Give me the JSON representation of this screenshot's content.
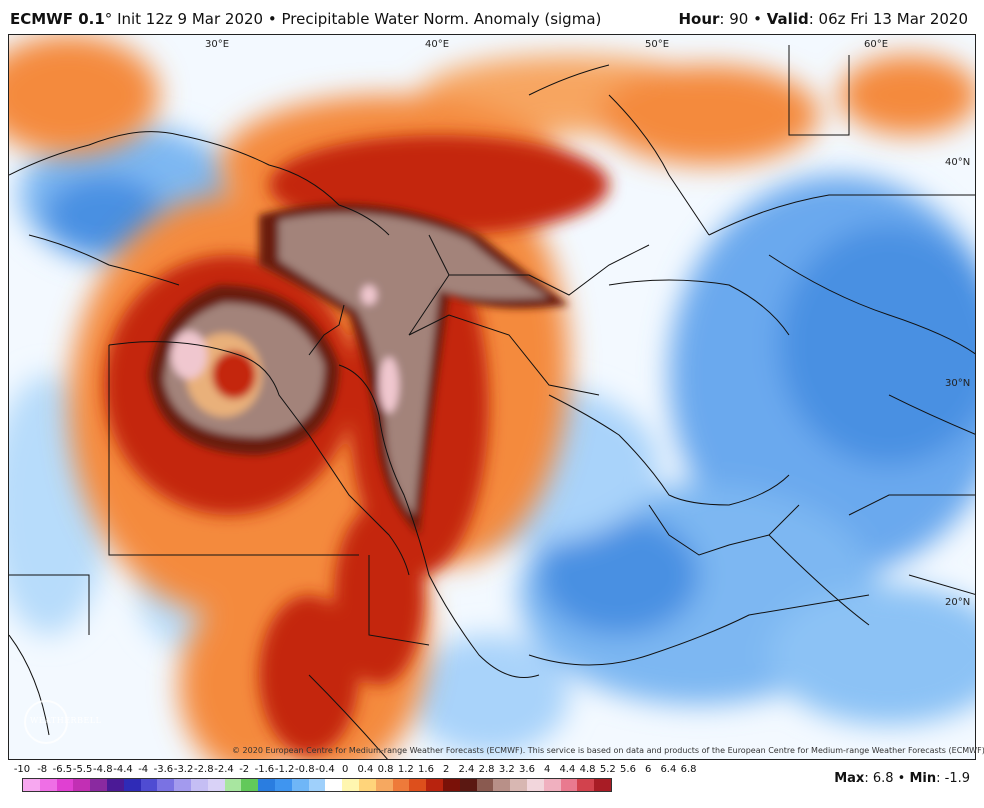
{
  "header": {
    "model": "ECMWF 0.1",
    "degree": "°",
    "init": "Init 12z 9 Mar 2020",
    "bullet": "•",
    "product": "Precipitable Water Norm. Anomaly (sigma)",
    "hour_label": "Hour",
    "hour_value": ": 90",
    "valid_label": "Valid",
    "valid_value": ": 06z Fri 13 Mar 2020"
  },
  "map": {
    "longitude_labels": [
      "30°E",
      "40°E",
      "50°E",
      "60°E"
    ],
    "latitude_labels": [
      "40°N",
      "30°N",
      "20°N"
    ],
    "copyright": "© 2020 European Centre for Medium-range Weather Forecasts (ECMWF). This service is based on data and products of the European Centre for Medium-range Weather Forecasts (ECMWF).",
    "logo_text": "WEATHERBELL",
    "colors": {
      "background_light": "#f6fbff",
      "anomaly_orange": "#f48a3c",
      "anomaly_red": "#c4270e",
      "anomaly_dark": "#6b1b10",
      "anomaly_mauve": "#a3837a",
      "anomaly_pink": "#f0c7cf",
      "moist_blue": "#4a90e2",
      "moist_lightblue": "#b7dcfb"
    }
  },
  "colorbar": {
    "ticks": [
      "-10",
      "-8",
      "-6.5",
      "-5.5",
      "-4.8",
      "-4.4",
      "-4",
      "-3.6",
      "-3.2",
      "-2.8",
      "-2.4",
      "-2",
      "-1.6",
      "-1.2",
      "-0.8",
      "-0.4",
      "0",
      "0.4",
      "0.8",
      "1.2",
      "1.6",
      "2",
      "2.4",
      "2.8",
      "3.2",
      "3.6",
      "4",
      "4.4",
      "4.8",
      "5.2",
      "5.6",
      "6",
      "6.4",
      "6.8"
    ],
    "colors": [
      "#f7a8f0",
      "#ef6fe6",
      "#e040d2",
      "#c22fb4",
      "#8a2aa0",
      "#4b1a96",
      "#2f2bb7",
      "#4f4cd2",
      "#7a72e3",
      "#a39aee",
      "#c5bef4",
      "#d9d2f7",
      "#a8e6a0",
      "#62c95a",
      "#2a7de0",
      "#3f95f0",
      "#6fb6f7",
      "#9fd0fb",
      "#ffffff",
      "#fff6b0",
      "#ffd47a",
      "#f6a860",
      "#ee7a3a",
      "#dd4f1c",
      "#b8230e",
      "#7a1108",
      "#5b1812",
      "#8a5a50",
      "#b89088",
      "#d8b7b2",
      "#f2d6dc",
      "#f0b0bf",
      "#e97a8f",
      "#d2424d",
      "#a81c25"
    ],
    "max_label": "Max",
    "max_value": ": 6.8",
    "min_label": "Min",
    "min_value": ": -1.9"
  }
}
